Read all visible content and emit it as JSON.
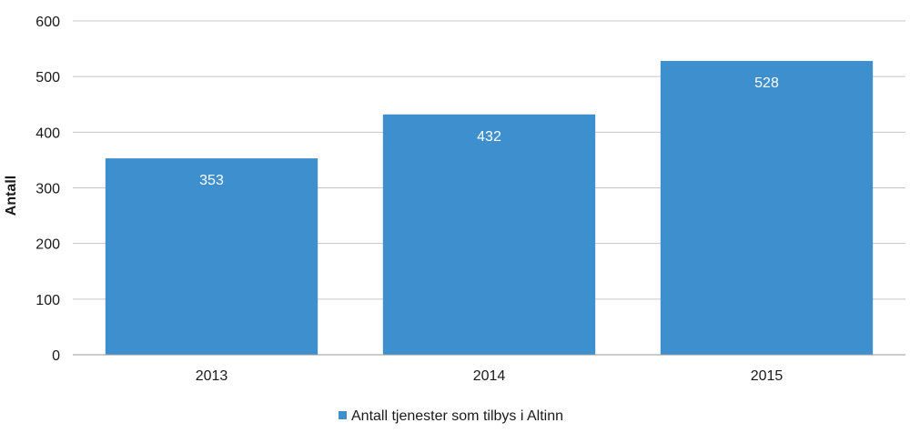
{
  "chart_data": {
    "type": "bar",
    "title": "",
    "xlabel": "",
    "ylabel": "Antall",
    "categories": [
      "2013",
      "2014",
      "2015"
    ],
    "series": [
      {
        "name": "Antall tjenester som tilbys i Altinn",
        "values": [
          353,
          432,
          528
        ]
      }
    ],
    "ylim": [
      0,
      600
    ],
    "yticks": [
      0,
      100,
      200,
      300,
      400,
      500,
      600
    ],
    "grid": true,
    "legend": "bottom-center",
    "colors": {
      "bar": "#3d8fce",
      "grid": "#c8c8c8",
      "axis": "#9a9a9a"
    }
  }
}
